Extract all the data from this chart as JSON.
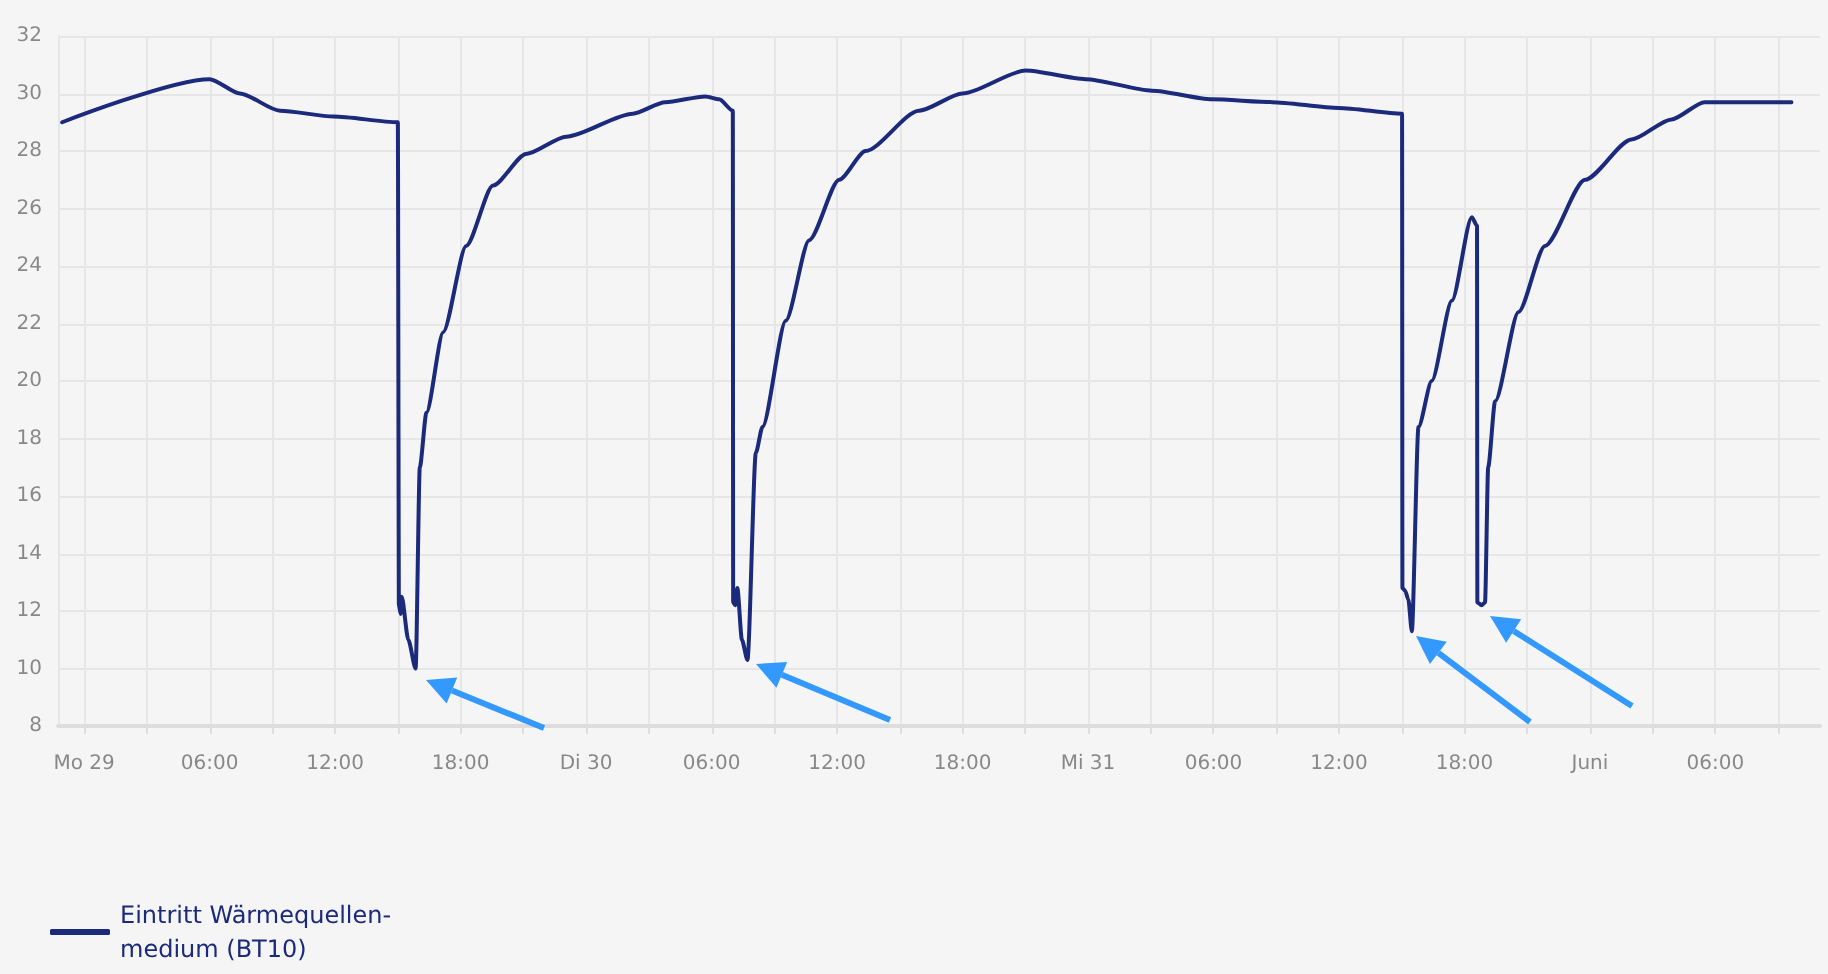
{
  "chart_data": {
    "type": "line",
    "xlim": [
      "--05-28T22:45",
      "--06-01T11:00"
    ],
    "ylim": [
      8,
      32
    ],
    "yticks": [
      8,
      10,
      12,
      14,
      16,
      18,
      20,
      22,
      24,
      26,
      28,
      30,
      32
    ],
    "xticks": [
      {
        "value": "--05-29T00:00",
        "label": "Mo 29"
      },
      {
        "value": "--05-29T03:00",
        "label": null
      },
      {
        "value": "--05-29T06:00",
        "label": "06:00"
      },
      {
        "value": "--05-29T09:00",
        "label": null
      },
      {
        "value": "--05-29T12:00",
        "label": "12:00"
      },
      {
        "value": "--05-29T15:00",
        "label": null
      },
      {
        "value": "--05-29T18:00",
        "label": "18:00"
      },
      {
        "value": "--05-29T21:00",
        "label": null
      },
      {
        "value": "--05-30T00:00",
        "label": "Di 30"
      },
      {
        "value": "--05-30T03:00",
        "label": null
      },
      {
        "value": "--05-30T06:00",
        "label": "06:00"
      },
      {
        "value": "--05-30T09:00",
        "label": null
      },
      {
        "value": "--05-30T12:00",
        "label": "12:00"
      },
      {
        "value": "--05-30T15:00",
        "label": null
      },
      {
        "value": "--05-30T18:00",
        "label": "18:00"
      },
      {
        "value": "--05-30T21:00",
        "label": null
      },
      {
        "value": "--05-31T00:00",
        "label": "Mi 31"
      },
      {
        "value": "--05-31T03:00",
        "label": null
      },
      {
        "value": "--05-31T06:00",
        "label": "06:00"
      },
      {
        "value": "--05-31T09:00",
        "label": null
      },
      {
        "value": "--05-31T12:00",
        "label": "12:00"
      },
      {
        "value": "--05-31T15:00",
        "label": null
      },
      {
        "value": "--05-31T18:00",
        "label": "18:00"
      },
      {
        "value": "--05-31T21:00",
        "label": null
      },
      {
        "value": "--06-01T00:00",
        "label": "Juni"
      },
      {
        "value": "--06-01T03:00",
        "label": null
      },
      {
        "value": "--06-01T06:00",
        "label": "06:00"
      },
      {
        "value": "--06-01T09:00",
        "label": null
      }
    ],
    "grid": true,
    "legend": "bottom left",
    "marker": "none",
    "line_style": "solid",
    "series": [
      {
        "name": "Eintritt Wärmequellen-medium (BT10)",
        "color": "#1b2a7b",
        "x": [
          "--05-28T22:57",
          "--05-29T06:00",
          "--05-29T07:27",
          "--05-29T09:22",
          "--05-29T11:56",
          "--05-29T15:00",
          "--05-29T15:03",
          "--05-29T15:08",
          "--05-29T15:11",
          "--05-29T15:30",
          "--05-29T15:51",
          "--05-29T16:03",
          "--05-29T16:22",
          "--05-29T17:10",
          "--05-29T18:16",
          "--05-29T19:33",
          "--05-29T21:08",
          "--05-29T23:03",
          "--05-30T02:14",
          "--05-30T03:47",
          "--05-30T05:42",
          "--05-30T06:22",
          "--05-30T07:01",
          "--05-30T07:02",
          "--05-30T07:08",
          "--05-30T07:14",
          "--05-30T07:27",
          "--05-30T07:43",
          "--05-30T08:07",
          "--05-30T08:26",
          "--05-30T09:33",
          "--05-30T10:40",
          "--05-30T12:06",
          "--05-30T13:22",
          "--05-30T15:55",
          "--05-30T18:00",
          "--05-30T21:01",
          "--05-30T23:53",
          "--05-31T03:04",
          "--05-31T05:56",
          "--05-31T08:48",
          "--05-31T11:59",
          "--05-31T15:01",
          "--05-31T15:02",
          "--05-31T15:10",
          "--05-31T15:19",
          "--05-31T15:29",
          "--05-31T15:48",
          "--05-31T16:26",
          "--05-31T17:24",
          "--05-31T18:21",
          "--05-31T18:36",
          "--05-31T18:37",
          "--05-31T18:49",
          "--05-31T18:59",
          "--05-31T19:08",
          "--05-31T19:28",
          "--05-31T20:35",
          "--05-31T21:51",
          "--05-31T23:46",
          "--06-01T01:59",
          "--06-01T03:54",
          "--06-01T05:29",
          "--06-01T09:38"
        ],
        "values": [
          29.0,
          30.5,
          30.0,
          29.4,
          29.2,
          29.0,
          12.2,
          11.9,
          12.5,
          11.0,
          10.0,
          17.0,
          18.9,
          21.7,
          24.7,
          26.8,
          27.9,
          28.5,
          29.3,
          29.7,
          29.9,
          29.8,
          29.4,
          12.3,
          12.2,
          12.8,
          11.0,
          10.3,
          17.5,
          18.4,
          22.1,
          24.9,
          27.0,
          28.0,
          29.4,
          30.0,
          30.8,
          30.5,
          30.1,
          29.8,
          29.7,
          29.5,
          29.3,
          12.8,
          12.7,
          12.4,
          11.3,
          18.4,
          20.0,
          22.8,
          25.7,
          25.4,
          12.3,
          12.2,
          12.3,
          17.0,
          19.3,
          22.4,
          24.7,
          27.0,
          28.4,
          29.1,
          29.7,
          29.7
        ]
      }
    ]
  }
}
